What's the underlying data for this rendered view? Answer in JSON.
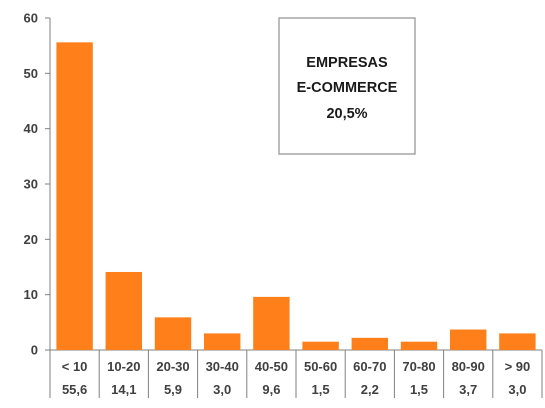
{
  "chart_data": {
    "type": "bar",
    "categories": [
      "< 10",
      "10-20",
      "20-30",
      "30-40",
      "40-50",
      "50-60",
      "60-70",
      "70-80",
      "80-90",
      "> 90"
    ],
    "values": [
      55.6,
      14.1,
      5.9,
      3.0,
      9.6,
      1.5,
      2.2,
      1.5,
      3.7,
      3.0
    ],
    "value_labels": [
      "55,6",
      "14,1",
      "5,9",
      "3,0",
      "9,6",
      "1,5",
      "2,2",
      "1,5",
      "3,7",
      "3,0"
    ],
    "yticks": [
      "0",
      "10",
      "20",
      "30",
      "40",
      "50",
      "60"
    ],
    "ylim": [
      0,
      60
    ],
    "bar_color": "#ff7f1a",
    "grid": false,
    "legend": "none",
    "annotation_box": {
      "lines": [
        "EMPRESAS",
        "E-COMMERCE",
        "20,5%"
      ]
    }
  }
}
